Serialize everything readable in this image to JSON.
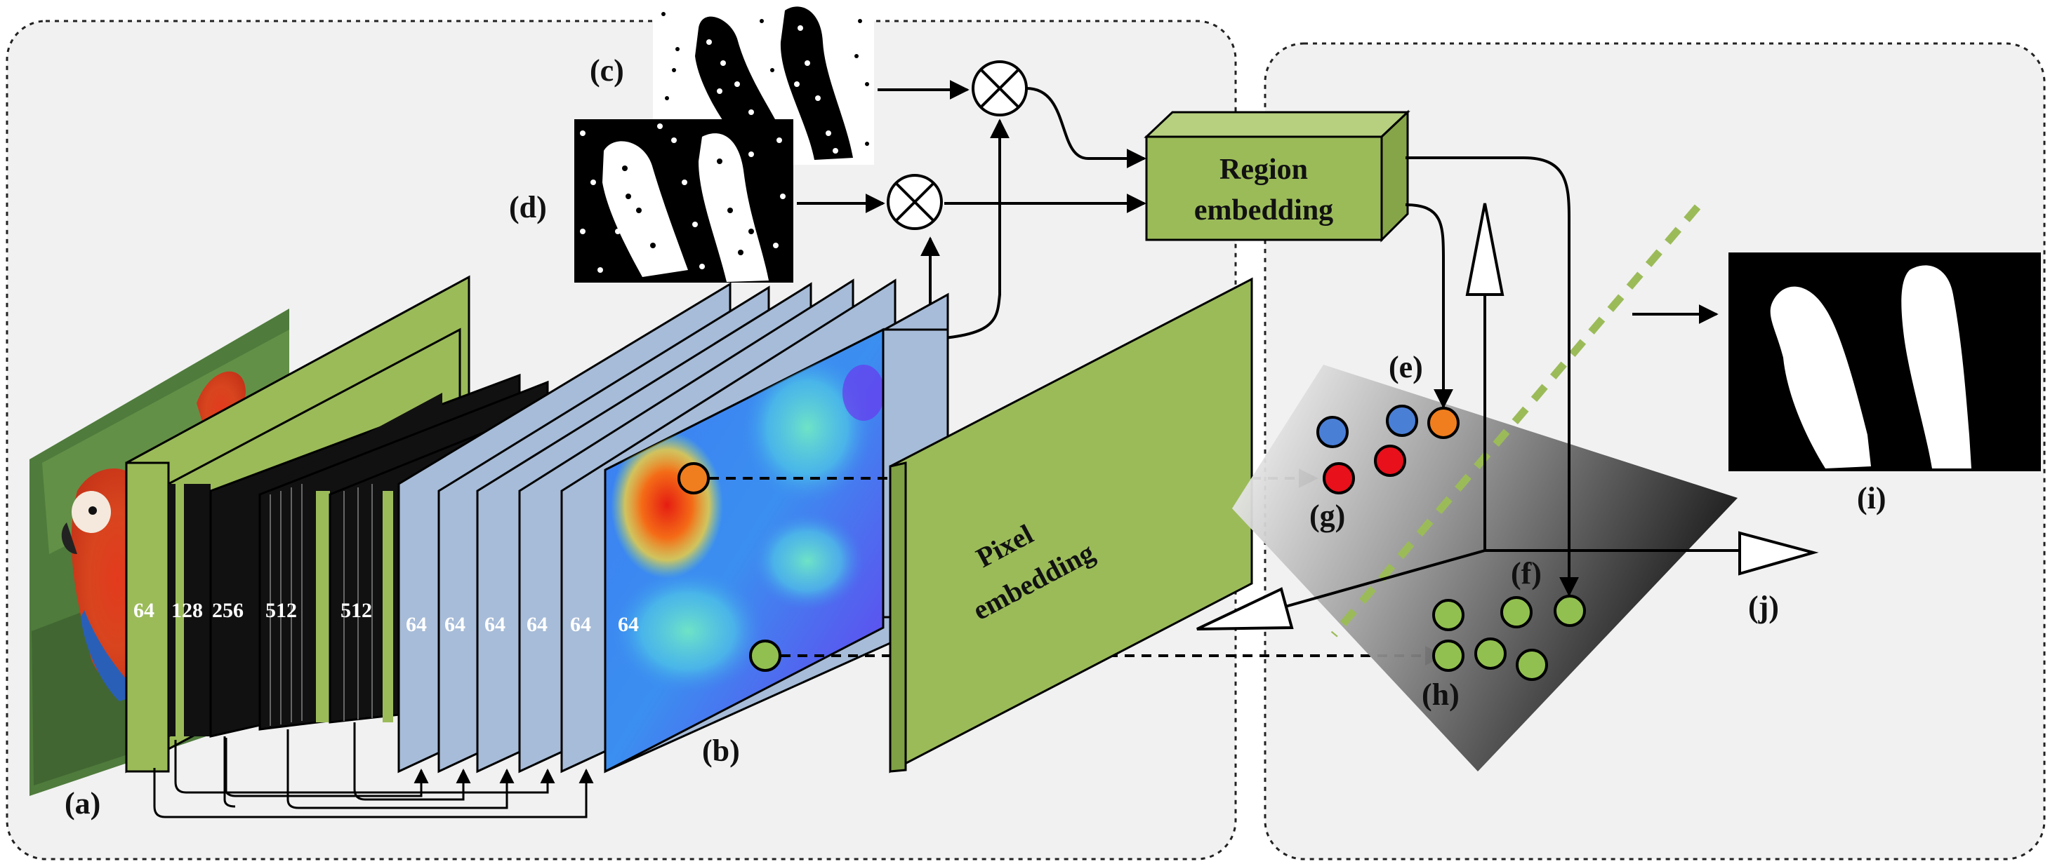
{
  "labels": {
    "a": "(a)",
    "b": "(b)",
    "c": "(c)",
    "d": "(d)",
    "e": "(e)",
    "f": "(f)",
    "g": "(g)",
    "h": "(h)",
    "i": "(i)",
    "j": "(j)"
  },
  "encoder_channels": [
    "64",
    "128",
    "256",
    "512",
    "512"
  ],
  "decoder_channels": [
    "64",
    "64",
    "64",
    "64",
    "64",
    "64"
  ],
  "region_embedding": {
    "line1": "Region",
    "line2": "embedding"
  },
  "pixel_embedding": {
    "line1": "Pixel",
    "line2": "embedding"
  },
  "colors": {
    "panel": "#f1f1f1",
    "green_layer": "#9bbb59",
    "blue_layer": "#a7bcd8",
    "orange_point": "#f07e1e",
    "red_point": "#e8101b",
    "blue_point": "#4a7fd6",
    "green_point": "#92c050",
    "dashed_boundary": "#9bbb59"
  }
}
